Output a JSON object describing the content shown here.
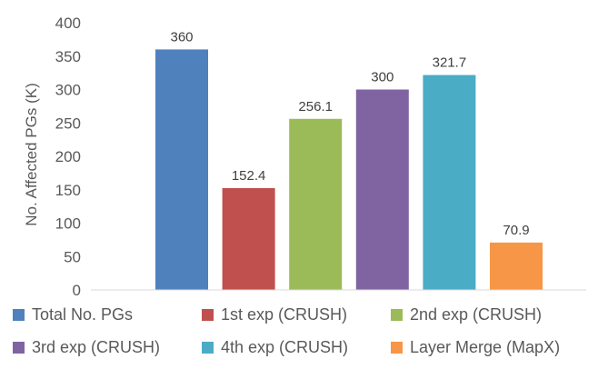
{
  "chart_data": {
    "type": "bar",
    "ylabel": "No. Affected PGs (K)",
    "ylim": [
      0,
      400
    ],
    "yticks": [
      0,
      50,
      100,
      150,
      200,
      250,
      300,
      350,
      400
    ],
    "grid": false,
    "legend_position": "bottom",
    "series": [
      {
        "name": "Total No. PGs",
        "value": 360,
        "label": "360",
        "color": "#4F81BD"
      },
      {
        "name": "1st exp (CRUSH)",
        "value": 152.4,
        "label": "152.4",
        "color": "#C0504D"
      },
      {
        "name": "2nd exp (CRUSH)",
        "value": 256.1,
        "label": "256.1",
        "color": "#9BBB59"
      },
      {
        "name": "3rd exp (CRUSH)",
        "value": 300,
        "label": "300",
        "color": "#8064A2"
      },
      {
        "name": "4th exp (CRUSH)",
        "value": 321.7,
        "label": "321.7",
        "color": "#4BACC6"
      },
      {
        "name": "Layer Merge (MapX)",
        "value": 70.9,
        "label": "70.9",
        "color": "#F79646"
      }
    ]
  }
}
